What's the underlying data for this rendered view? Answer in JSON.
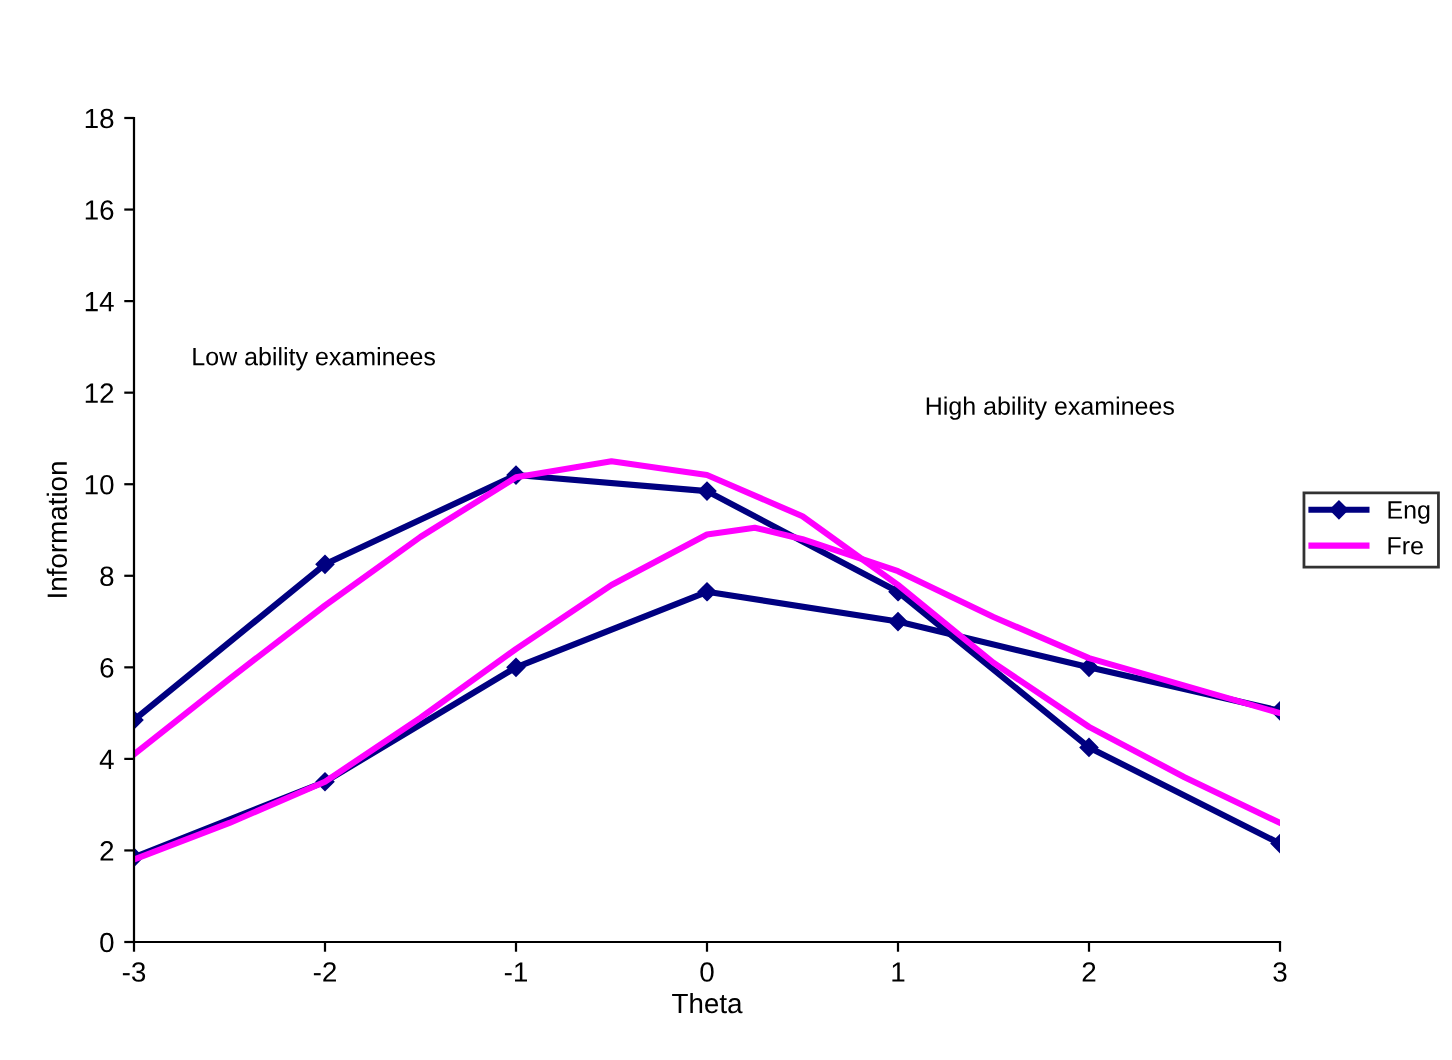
{
  "chart_data": {
    "type": "line",
    "xlabel": "Theta",
    "ylabel": "Information",
    "x": [
      -3,
      -2,
      -1,
      0,
      1,
      2,
      3
    ],
    "series": [
      {
        "name": "Eng",
        "color": "#000080",
        "marker": "diamond",
        "values": [
          4.85,
          8.25,
          10.2,
          9.85,
          7.65,
          4.25,
          2.15
        ]
      },
      {
        "color": "#000080",
        "marker": "diamond",
        "values": [
          1.85,
          3.5,
          6.0,
          7.65,
          7.0,
          6.0,
          5.05
        ]
      },
      {
        "name": "Fre",
        "color": "#ff00ff",
        "marker": "none",
        "x": [
          -3,
          -2.5,
          -2,
          -1.5,
          -1,
          -0.5,
          0,
          0.5,
          1,
          1.5,
          2,
          2.5,
          3
        ],
        "values": [
          4.1,
          5.75,
          7.35,
          8.85,
          10.15,
          10.5,
          10.2,
          9.3,
          7.8,
          6.1,
          4.7,
          3.6,
          2.6
        ]
      },
      {
        "color": "#ff00ff",
        "marker": "none",
        "x": [
          -3,
          -2.5,
          -2,
          -1.5,
          -1,
          -0.5,
          0,
          0.25,
          0.5,
          1,
          1.5,
          2,
          2.5,
          3
        ],
        "values": [
          1.8,
          2.6,
          3.5,
          4.9,
          6.4,
          7.8,
          8.9,
          9.05,
          8.8,
          8.1,
          7.1,
          6.2,
          5.6,
          5.0
        ]
      }
    ],
    "xlim": [
      -3,
      3
    ],
    "xticks": [
      -3,
      -2,
      -1,
      0,
      1,
      2,
      3
    ],
    "ylim": [
      0,
      18
    ],
    "yticks": [
      0,
      2,
      4,
      6,
      8,
      10,
      12,
      14,
      16,
      18
    ],
    "grid": false,
    "legend": "right",
    "annotations": [
      "Low ability examinees",
      "High ability examinees"
    ]
  }
}
